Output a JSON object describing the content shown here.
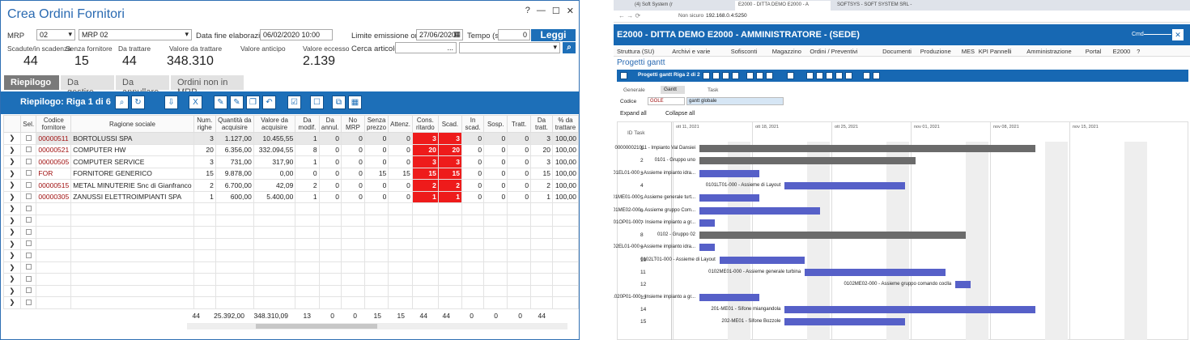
{
  "left": {
    "title": "Crea Ordini Fornitori",
    "win": {
      "help": "?",
      "min": "—",
      "max": "☐",
      "close": "✕"
    },
    "mrp_label": "MRP",
    "mrp_code": "02",
    "mrp_desc": "MRP 02",
    "data_fine_label": "Data fine elaborazione",
    "data_fine": "06/02/2020 10:00",
    "limite_label": "Limite emissione ordini",
    "limite": "27/06/2020",
    "tempo_label": "Tempo (s)",
    "tempo": "0",
    "leggi": "Leggi",
    "cerca_label": "Cerca articolo",
    "cerca_dots": "...",
    "stats": [
      {
        "h": "Scadute/in scadenza",
        "v": "44"
      },
      {
        "h": "Senza fornitore",
        "v": "15"
      },
      {
        "h": "Da trattare",
        "v": "44"
      },
      {
        "h": "Valore da trattare",
        "v": "348.310"
      },
      {
        "h": "Valore anticipo",
        "v": ""
      },
      {
        "h": "Valore eccesso",
        "v": "2.139"
      }
    ],
    "tabs": [
      "Riepilogo",
      "Da gestire",
      "Da annullare",
      "Ordini non in MRP"
    ],
    "bar_title": "Riepilogo: Riga 1 di 6",
    "headers": [
      "",
      "Sel.",
      "Codice fornitore",
      "Ragione sociale",
      "Num. righe",
      "Quantità da acquisire",
      "Valore da acquisire",
      "Da modif.",
      "Da annul.",
      "No MRP",
      "Senza prezzo",
      "Attenz.",
      "Cons. ritardo",
      "Scad.",
      "In scad.",
      "Sosp.",
      "Tratt.",
      "Da tratt.",
      "% da trattare"
    ],
    "rows": [
      [
        "00000511",
        "BORTOLUSSI SPA",
        "3",
        "1.127,00",
        "10.455,55",
        "1",
        "0",
        "0",
        "0",
        "0",
        "3",
        "3",
        "0",
        "0",
        "0",
        "3",
        "100,00"
      ],
      [
        "00000521",
        "COMPUTER HW",
        "20",
        "6.356,00",
        "332.094,55",
        "8",
        "0",
        "0",
        "0",
        "0",
        "20",
        "20",
        "0",
        "0",
        "0",
        "20",
        "100,00"
      ],
      [
        "00000505",
        "COMPUTER SERVICE",
        "3",
        "731,00",
        "317,90",
        "1",
        "0",
        "0",
        "0",
        "0",
        "3",
        "3",
        "0",
        "0",
        "0",
        "3",
        "100,00"
      ],
      [
        "FOR",
        "FORNITORE GENERICO",
        "15",
        "9.878,00",
        "0,00",
        "0",
        "0",
        "0",
        "15",
        "15",
        "15",
        "15",
        "0",
        "0",
        "0",
        "15",
        "100,00"
      ],
      [
        "00000515",
        "METAL MINUTERIE Snc di Gianfranco",
        "2",
        "6.700,00",
        "42,09",
        "2",
        "0",
        "0",
        "0",
        "0",
        "2",
        "2",
        "0",
        "0",
        "0",
        "2",
        "100,00"
      ],
      [
        "00000305",
        "ZANUSSI ELETTROIMPIANTI SPA",
        "1",
        "600,00",
        "5.400,00",
        "1",
        "0",
        "0",
        "0",
        "0",
        "1",
        "1",
        "0",
        "0",
        "0",
        "1",
        "100,00"
      ]
    ],
    "totals": [
      "44",
      "25.392,00",
      "348.310,09",
      "13",
      "0",
      "0",
      "15",
      "15",
      "44",
      "44",
      "0",
      "0",
      "0",
      "44"
    ]
  },
  "right": {
    "tabs": [
      "(4) Soft System (r",
      "E2000 - DITTA DEMO E2000 - A",
      "SOFTSYS - SOFT SYSTEM SRL -"
    ],
    "url_warn": "Non sicuro",
    "url": "192.168.0.4:5250",
    "app_title": "E2000 - DITTA DEMO E2000 - AMMINISTRATORE - (SEDE)",
    "cmd_label": "Cmd",
    "menu": [
      "Struttura (SU)",
      "Archivi e varie",
      "Sofisconti",
      "Magazzino",
      "Ordini / Preventivi",
      "Documenti",
      "Produzione",
      "MES",
      "KPI Pannelli",
      "Amministrazione",
      "Portal",
      "E2000",
      "?"
    ],
    "page_title": "Progetti gantt",
    "gantt_bar_title": "Progetti gantt  Riga 2 di 2",
    "subtabs": [
      "Generale",
      "Gantt",
      "Task"
    ],
    "codice_label": "Codice",
    "codice_val": "GOLE",
    "codice_desc": "gantt globale",
    "expand": "Expand all",
    "collapse": "Collapse all",
    "id_task": "ID Task",
    "weeks": [
      "ott 11, 2021",
      "ott 18, 2021",
      "ott 25, 2021",
      "nov 01, 2021",
      "nov 08, 2021",
      "nov 15, 2021"
    ],
    "tasks": [
      {
        "n": "1",
        "label": "000000021011 - Impianto Val Dansiei",
        "s": 0.05,
        "e": 0.72,
        "summary": true
      },
      {
        "n": "2",
        "label": "0101 - Gruppo uno",
        "s": 0.05,
        "e": 0.48,
        "summary": true
      },
      {
        "n": "3",
        "label": "0101EL01-000 - Assieme impianto idra...",
        "s": 0.05,
        "e": 0.17
      },
      {
        "n": "4",
        "label": "0101LT01-000 - Assieme di Layout",
        "s": 0.22,
        "e": 0.46
      },
      {
        "n": "5",
        "label": "0101ME01-000 - Assieme generale turt...",
        "s": 0.05,
        "e": 0.17
      },
      {
        "n": "6",
        "label": "0101ME02-000 - Assieme gruppo Com...",
        "s": 0.05,
        "e": 0.29
      },
      {
        "n": "7",
        "label": "0101OP01-000 - Insieme impianto a gr...",
        "s": 0.05,
        "e": 0.08
      },
      {
        "n": "8",
        "label": "0102 - Gruppo 02",
        "s": 0.05,
        "e": 0.58,
        "summary": true
      },
      {
        "n": "9",
        "label": "0102EL01-000 - Assieme impianto idra...",
        "s": 0.05,
        "e": 0.08
      },
      {
        "n": "10",
        "label": "0102LT01-000 - Assieme di Layout",
        "s": 0.09,
        "e": 0.26
      },
      {
        "n": "11",
        "label": "0102ME01-000 - Assieme generale turbina",
        "s": 0.26,
        "e": 0.54
      },
      {
        "n": "12",
        "label": "0102ME02-000 - Assieme gruppo comando coclla",
        "s": 0.56,
        "e": 0.59
      },
      {
        "n": "13",
        "label": "01020P01-000 - Insieme impianto a gr...",
        "s": 0.05,
        "e": 0.17
      },
      {
        "n": "14",
        "label": "201-ME01 - Sifone miangandola",
        "s": 0.22,
        "e": 0.72
      },
      {
        "n": "15",
        "label": "202-ME01 - Sifone Bozzole",
        "s": 0.22,
        "e": 0.46
      }
    ]
  }
}
